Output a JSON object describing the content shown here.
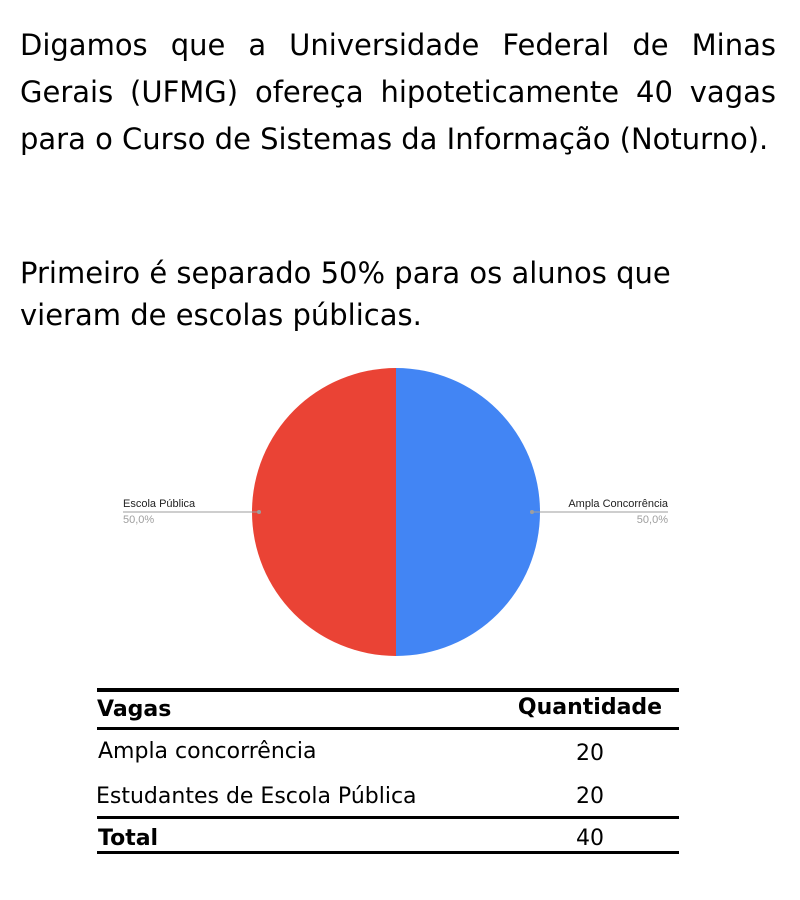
{
  "text": {
    "paragraph_1": "Digamos que a Universidade Federal de Minas Gerais (UFMG) ofereça hipoteticamente 40 vagas para o Curso de Sistemas da Informação (Noturno).",
    "paragraph_2": "Primeiro é separado 50% para os alunos que vieram de escolas públicas."
  },
  "chart_data": {
    "type": "pie",
    "title": "",
    "slices": [
      {
        "label": "Ampla Concorrência",
        "value": 50.0,
        "display": "50,0%",
        "color": "#4285f4"
      },
      {
        "label": "Escola Pública",
        "value": 50.0,
        "display": "50,0%",
        "color": "#ea4335"
      }
    ],
    "legend": "callout labels on left and right"
  },
  "table": {
    "headers": [
      "Vagas",
      "Quantidade"
    ],
    "rows": [
      {
        "label": "Ampla concorrência",
        "value": "20"
      },
      {
        "label": "Estudantes de Escola Pública",
        "value": "20"
      }
    ],
    "total": {
      "label": "Total",
      "value": "40"
    }
  }
}
